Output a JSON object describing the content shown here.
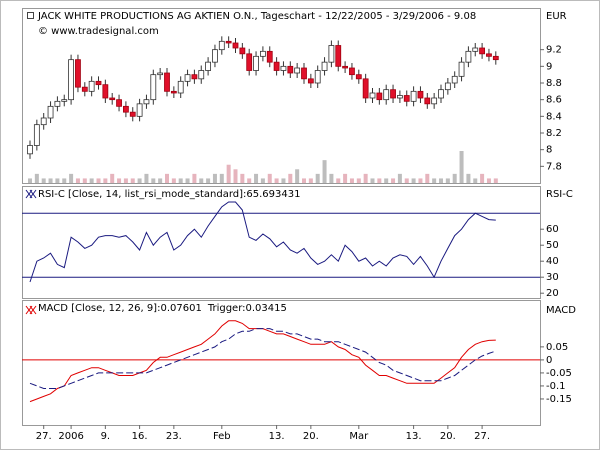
{
  "chart_data": [
    {
      "type": "candlestick",
      "title": "JACK WHITE PRODUCTIONS AG AKTIEN O.N., Tageschart - 12/22/2005 - 3/29/2006 - 9.08",
      "subtitle": "© www.tradesignal.com",
      "y_label": "EUR",
      "ylim": [
        7.6,
        9.7
      ],
      "yticks": [
        7.8,
        8,
        8.2,
        8.4,
        8.6,
        8.8,
        9,
        9.2
      ],
      "open": [
        7.95,
        8.05,
        8.3,
        8.38,
        8.52,
        8.58,
        8.6,
        9.08,
        8.75,
        8.7,
        8.82,
        8.78,
        8.62,
        8.6,
        8.52,
        8.45,
        8.4,
        8.55,
        8.6,
        8.9,
        8.92,
        8.7,
        8.68,
        8.82,
        8.9,
        8.85,
        8.95,
        9.05,
        9.2,
        9.3,
        9.28,
        9.22,
        9.15,
        8.95,
        9.12,
        9.18,
        9.05,
        8.95,
        9.0,
        8.92,
        8.98,
        8.85,
        8.8,
        8.95,
        9.05,
        9.25,
        9.0,
        8.98,
        8.9,
        8.85,
        8.62,
        8.68,
        8.6,
        8.72,
        8.62,
        8.65,
        8.58,
        8.7,
        8.62,
        8.55,
        8.62,
        8.72,
        8.8,
        8.88,
        9.05,
        9.18,
        9.22,
        9.15,
        9.12
      ],
      "high": [
        8.11,
        8.36,
        8.44,
        8.58,
        8.64,
        8.66,
        9.14,
        9.14,
        8.81,
        8.88,
        8.88,
        8.84,
        8.68,
        8.66,
        8.58,
        8.51,
        8.61,
        8.66,
        8.96,
        8.98,
        8.98,
        8.76,
        8.88,
        8.96,
        8.96,
        9.01,
        9.11,
        9.26,
        9.36,
        9.36,
        9.34,
        9.28,
        9.21,
        9.18,
        9.24,
        9.24,
        9.11,
        9.06,
        9.06,
        9.04,
        9.04,
        8.91,
        9.01,
        9.11,
        9.31,
        9.31,
        9.06,
        9.04,
        8.96,
        8.91,
        8.74,
        8.74,
        8.78,
        8.78,
        8.71,
        8.71,
        8.76,
        8.76,
        8.68,
        8.68,
        8.78,
        8.86,
        8.94,
        9.11,
        9.24,
        9.28,
        9.28,
        9.21,
        9.18
      ],
      "low": [
        7.89,
        7.99,
        8.24,
        8.32,
        8.46,
        8.52,
        8.54,
        8.69,
        8.64,
        8.64,
        8.72,
        8.56,
        8.54,
        8.46,
        8.39,
        8.34,
        8.34,
        8.49,
        8.54,
        8.84,
        8.64,
        8.62,
        8.62,
        8.76,
        8.79,
        8.79,
        8.89,
        8.99,
        9.14,
        9.22,
        9.16,
        9.09,
        8.89,
        8.89,
        9.06,
        8.99,
        8.89,
        8.89,
        8.86,
        8.86,
        8.79,
        8.74,
        8.74,
        8.89,
        8.99,
        8.94,
        8.92,
        8.84,
        8.79,
        8.56,
        8.56,
        8.54,
        8.54,
        8.56,
        8.56,
        8.52,
        8.52,
        8.56,
        8.49,
        8.49,
        8.56,
        8.66,
        8.74,
        8.82,
        8.99,
        9.12,
        9.09,
        9.06,
        9.02
      ],
      "close": [
        8.05,
        8.3,
        8.38,
        8.52,
        8.58,
        8.6,
        9.08,
        8.75,
        8.7,
        8.82,
        8.78,
        8.62,
        8.6,
        8.52,
        8.45,
        8.4,
        8.55,
        8.6,
        8.9,
        8.92,
        8.7,
        8.68,
        8.82,
        8.9,
        8.85,
        8.95,
        9.05,
        9.2,
        9.3,
        9.28,
        9.22,
        9.15,
        8.95,
        9.12,
        9.18,
        9.05,
        8.95,
        9.0,
        8.92,
        8.98,
        8.85,
        8.8,
        8.95,
        9.05,
        9.25,
        9.0,
        8.98,
        8.9,
        8.85,
        8.62,
        8.68,
        8.6,
        8.72,
        8.62,
        8.65,
        8.58,
        8.7,
        8.62,
        8.55,
        8.62,
        8.72,
        8.8,
        8.88,
        9.05,
        9.18,
        9.22,
        9.15,
        9.12,
        9.08
      ],
      "volume": [
        1,
        2,
        1,
        1,
        1,
        1,
        2,
        1,
        1,
        1,
        1,
        1,
        2,
        1,
        1,
        1,
        1,
        2,
        1,
        1,
        2,
        1,
        1,
        1,
        2,
        1,
        1,
        2,
        2,
        4,
        3,
        2,
        1,
        2,
        1,
        2,
        1,
        1,
        2,
        3,
        1,
        1,
        2,
        5,
        2,
        1,
        2,
        1,
        1,
        2,
        1,
        1,
        1,
        1,
        2,
        1,
        1,
        1,
        2,
        1,
        1,
        1,
        2,
        7,
        2,
        1,
        2,
        1,
        1
      ],
      "up_color": "#ffffff",
      "down_color": "#e0102a",
      "volume_up_color": "#bdbdbd",
      "volume_down_color": "#e6b4bd"
    },
    {
      "type": "line",
      "y_label": "RSI-C",
      "ylim": [
        17,
        87
      ],
      "yticks": [
        20,
        30,
        40,
        50,
        60
      ],
      "levels": [
        70,
        30
      ],
      "level_color": "#1a1a80",
      "series": [
        {
          "name": "RSI-C [Close, 14, list_rsi_mode_standard]:65.693431",
          "color": "#1a1a80",
          "values": [
            27,
            40,
            42,
            45,
            38,
            36,
            55,
            52,
            48,
            50,
            55,
            56,
            56,
            55,
            56,
            52,
            47,
            58,
            50,
            55,
            58,
            47,
            50,
            56,
            60,
            55,
            62,
            68,
            74,
            77,
            77,
            72,
            55,
            53,
            57,
            54,
            49,
            52,
            47,
            45,
            48,
            42,
            38,
            40,
            44,
            40,
            50,
            46,
            40,
            42,
            37,
            40,
            37,
            42,
            44,
            43,
            38,
            43,
            37,
            30,
            40,
            48,
            56,
            60,
            66,
            70,
            68,
            66,
            65.69
          ]
        }
      ]
    },
    {
      "type": "line",
      "y_label": "MACD",
      "ylim": [
        -0.25,
        0.23
      ],
      "yticks": [
        -0.15,
        -0.1,
        -0.05,
        0,
        0.05
      ],
      "levels": [
        0
      ],
      "level_color": "#e00000",
      "categories": [
        null,
        null,
        "27.",
        null,
        null,
        null,
        "2006",
        null,
        null,
        null,
        null,
        "9.",
        null,
        null,
        null,
        null,
        "16.",
        null,
        null,
        null,
        null,
        "23.",
        null,
        null,
        null,
        null,
        null,
        null,
        "Feb",
        null,
        null,
        null,
        null,
        null,
        null,
        null,
        "13.",
        null,
        null,
        null,
        null,
        "20.",
        null,
        null,
        null,
        null,
        null,
        null,
        "Mar",
        null,
        null,
        null,
        null,
        null,
        null,
        null,
        "13.",
        null,
        null,
        null,
        null,
        "20.",
        null,
        null,
        null,
        null,
        "27.",
        null,
        null
      ],
      "series": [
        {
          "name": "MACD [Close, 12, 26, 9]:0.07601",
          "color": "#e00000",
          "values": [
            -0.16,
            -0.15,
            -0.14,
            -0.13,
            -0.11,
            -0.1,
            -0.06,
            -0.05,
            -0.04,
            -0.03,
            -0.03,
            -0.04,
            -0.05,
            -0.06,
            -0.06,
            -0.06,
            -0.05,
            -0.04,
            -0.01,
            0.01,
            0.01,
            0.02,
            0.03,
            0.04,
            0.05,
            0.06,
            0.08,
            0.1,
            0.13,
            0.15,
            0.15,
            0.14,
            0.12,
            0.12,
            0.12,
            0.11,
            0.1,
            0.1,
            0.09,
            0.08,
            0.07,
            0.06,
            0.06,
            0.06,
            0.07,
            0.05,
            0.04,
            0.02,
            0.01,
            -0.02,
            -0.04,
            -0.06,
            -0.06,
            -0.07,
            -0.08,
            -0.09,
            -0.09,
            -0.09,
            -0.09,
            -0.09,
            -0.07,
            -0.05,
            -0.03,
            0.01,
            0.04,
            0.06,
            0.07,
            0.075,
            0.07601
          ]
        },
        {
          "name": "Trigger:0.03415",
          "color": "#1a1a80",
          "dash": true,
          "values": [
            -0.09,
            -0.1,
            -0.11,
            -0.11,
            -0.11,
            -0.1,
            -0.09,
            -0.08,
            -0.07,
            -0.06,
            -0.05,
            -0.05,
            -0.05,
            -0.05,
            -0.05,
            -0.05,
            -0.05,
            -0.05,
            -0.04,
            -0.03,
            -0.02,
            -0.01,
            0.0,
            0.01,
            0.02,
            0.03,
            0.04,
            0.05,
            0.07,
            0.08,
            0.1,
            0.11,
            0.11,
            0.12,
            0.12,
            0.12,
            0.11,
            0.11,
            0.1,
            0.1,
            0.09,
            0.08,
            0.08,
            0.07,
            0.07,
            0.07,
            0.06,
            0.05,
            0.04,
            0.03,
            0.01,
            -0.01,
            -0.02,
            -0.04,
            -0.05,
            -0.06,
            -0.07,
            -0.08,
            -0.08,
            -0.08,
            -0.08,
            -0.07,
            -0.06,
            -0.04,
            -0.02,
            0.0,
            0.015,
            0.025,
            0.03415
          ]
        }
      ]
    }
  ]
}
